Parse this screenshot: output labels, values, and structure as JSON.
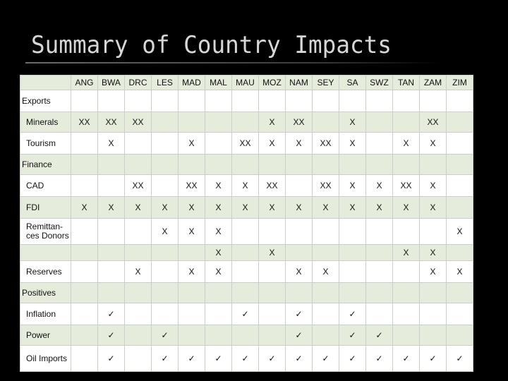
{
  "slide": {
    "title": "Summary of Country Impacts"
  },
  "countries": [
    "ANG",
    "BWA",
    "DRC",
    "LES",
    "MAD",
    "MAL",
    "MAU",
    "MOZ",
    "NAM",
    "SEY",
    "SA",
    "SWZ",
    "TAN",
    "ZAM",
    "ZIM"
  ],
  "marks": {
    "check": "✓"
  },
  "sections": [
    {
      "label": "Exports",
      "rows": [
        {
          "label": "Minerals",
          "cells": [
            "XX",
            "XX",
            "XX",
            "",
            "",
            "",
            "",
            "X",
            "XX",
            "",
            "X",
            "",
            "",
            "XX",
            ""
          ]
        },
        {
          "label": "Tourism",
          "cells": [
            "",
            "X",
            "",
            "",
            "X",
            "",
            "XX",
            "X",
            "X",
            "XX",
            "X",
            "",
            "X",
            "X",
            ""
          ]
        }
      ]
    },
    {
      "label": "Finance",
      "rows": [
        {
          "label": "CAD",
          "cells": [
            "",
            "",
            "XX",
            "",
            "XX",
            "X",
            "X",
            "XX",
            "",
            "XX",
            "X",
            "X",
            "XX",
            "X",
            ""
          ]
        },
        {
          "label": "FDI",
          "cells": [
            "X",
            "X",
            "X",
            "X",
            "X",
            "X",
            "X",
            "X",
            "X",
            "X",
            "X",
            "X",
            "X",
            "X",
            ""
          ]
        },
        {
          "label": "Remittan-ces Donors",
          "cells": [
            "",
            "",
            "",
            "X",
            "X",
            "X",
            "",
            "",
            "",
            "",
            "",
            "",
            "",
            "",
            "X"
          ]
        },
        {
          "label": "",
          "cells": [
            "",
            "",
            "",
            "",
            "",
            "X",
            "",
            "X",
            "",
            "",
            "",
            "",
            "X",
            "X",
            ""
          ]
        },
        {
          "label": "Reserves",
          "cells": [
            "",
            "",
            "X",
            "",
            "X",
            "X",
            "",
            "",
            "X",
            "X",
            "",
            "",
            "",
            "X",
            "X"
          ]
        }
      ]
    },
    {
      "label": "Positives",
      "rows": [
        {
          "label": "Inflation",
          "cells": [
            "",
            "✓",
            "",
            "",
            "",
            "",
            "✓",
            "",
            "✓",
            "",
            "✓",
            "",
            "",
            "",
            ""
          ]
        },
        {
          "label": "Power",
          "cells": [
            "",
            "✓",
            "",
            "✓",
            "",
            "",
            "",
            "",
            "✓",
            "",
            "✓",
            "✓",
            "",
            "",
            ""
          ]
        },
        {
          "label": "Oil Imports",
          "cells": [
            "",
            "✓",
            "",
            "✓",
            "✓",
            "✓",
            "✓",
            "✓",
            "✓",
            "✓",
            "✓",
            "✓",
            "✓",
            "✓",
            "✓"
          ]
        }
      ]
    }
  ]
}
